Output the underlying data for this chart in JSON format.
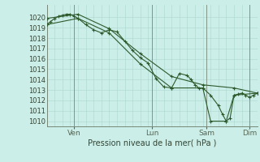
{
  "xlabel": "Pression niveau de la mer( hPa )",
  "bg_color": "#cceee8",
  "grid_color": "#aad8d0",
  "line_color": "#2d5a2d",
  "ylim": [
    1009.5,
    1021.2
  ],
  "yticks": [
    1010,
    1011,
    1012,
    1013,
    1014,
    1015,
    1016,
    1017,
    1018,
    1019,
    1020
  ],
  "series": [
    {
      "x": [
        0,
        0.5,
        1,
        1.5,
        2,
        2.5,
        3,
        3.5,
        4,
        5,
        6,
        7,
        8,
        9,
        10,
        11,
        12,
        13,
        14,
        15,
        16,
        17,
        18,
        18.5,
        19,
        19.5,
        20,
        21,
        22,
        22.5,
        23,
        23.5,
        24,
        24.5,
        25,
        25.5,
        26,
        26.5,
        27
      ],
      "y": [
        1019.3,
        1019.6,
        1019.9,
        1020.1,
        1020.2,
        1020.3,
        1020.3,
        1020.1,
        1019.9,
        1019.3,
        1018.8,
        1018.5,
        1018.8,
        1018.6,
        1017.7,
        1016.8,
        1016.1,
        1015.6,
        1014.1,
        1013.3,
        1013.2,
        1014.6,
        1014.4,
        1014.0,
        1013.5,
        1013.2,
        1013.2,
        1012.5,
        1011.5,
        1010.7,
        1010.0,
        1010.3,
        1012.5,
        1012.6,
        1012.7,
        1012.5,
        1012.3,
        1012.5,
        1012.7
      ]
    },
    {
      "x": [
        0,
        4,
        8,
        12,
        16,
        20,
        24,
        27
      ],
      "y": [
        1019.9,
        1020.3,
        1018.9,
        1016.5,
        1014.3,
        1013.5,
        1013.2,
        1012.7
      ]
    },
    {
      "x": [
        0,
        4,
        8,
        12,
        16,
        20,
        21,
        23,
        24,
        27
      ],
      "y": [
        1019.3,
        1019.9,
        1018.5,
        1015.5,
        1013.2,
        1013.2,
        1010.0,
        1010.0,
        1012.5,
        1012.7
      ]
    }
  ],
  "vlines_x": [
    3.5,
    13.5,
    20.5,
    26.0
  ],
  "vlines_labels": [
    "Ven",
    "Lun",
    "Sam",
    "Dim"
  ],
  "xlim": [
    0,
    27
  ],
  "num_minor_xticks": 27
}
